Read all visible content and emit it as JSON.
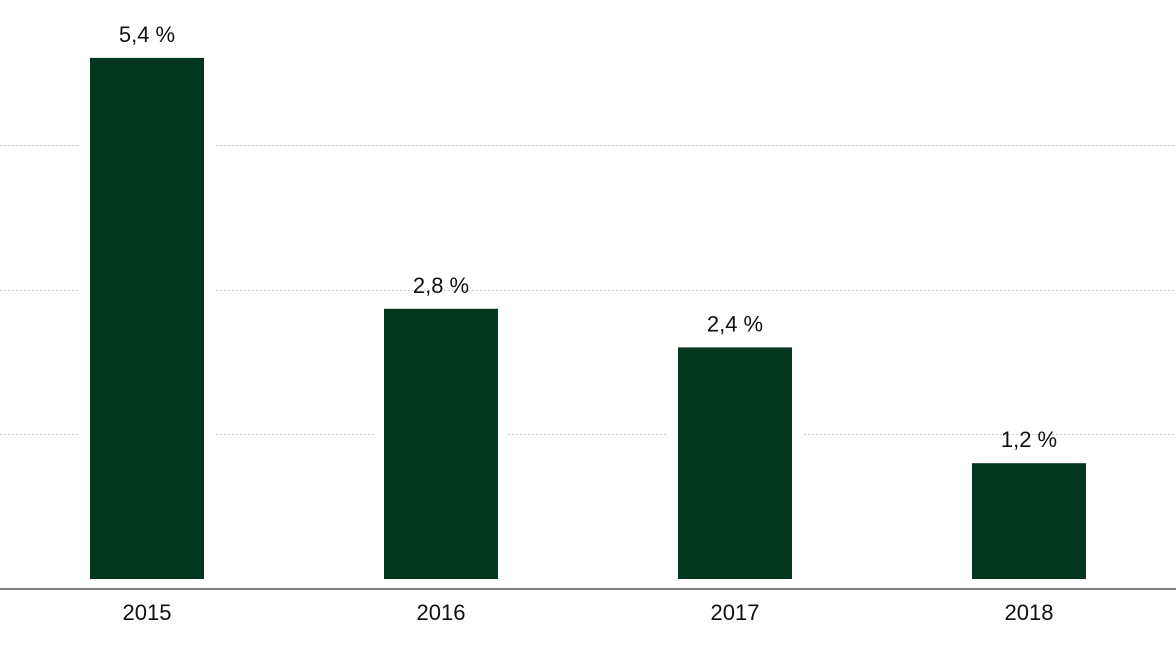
{
  "colors": {
    "bar": "#02361f",
    "gridline": "#c9c9c9",
    "axis": "#333333",
    "text": "#111111",
    "background": "#ffffff"
  },
  "chart_data": {
    "type": "bar",
    "categories": [
      "2015",
      "2016",
      "2017",
      "2018"
    ],
    "values": [
      5.4,
      2.8,
      2.4,
      1.2
    ],
    "data_labels": [
      "5,4 %",
      "2,8 %",
      "2,4 %",
      "1,2 %"
    ],
    "title": "",
    "xlabel": "",
    "ylabel": "",
    "ylim": [
      0,
      6
    ],
    "gridlines_at": [
      1.5,
      3,
      4.5
    ],
    "grid": true,
    "legend": "none"
  }
}
